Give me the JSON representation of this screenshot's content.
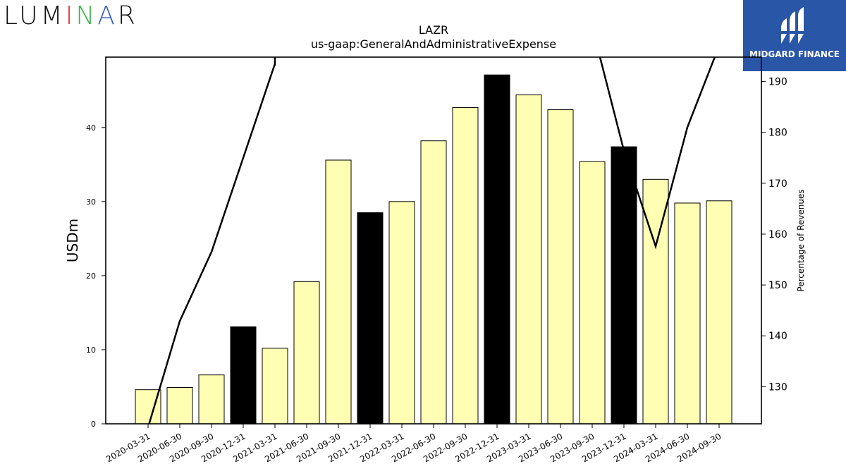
{
  "header": {
    "logo_text_parts": [
      "LUM",
      "I",
      "N",
      "A",
      "R"
    ],
    "badge_label": "MIDGARD FINANCE"
  },
  "chart_data": {
    "type": "bar",
    "title": "LAZR",
    "subtitle": "us-gaap:GeneralAndAdministrativeExpense",
    "ylabel": "USDm",
    "y2label": "Percentage of Revenues",
    "ylim": [
      0,
      49.5
    ],
    "y2lim": [
      122.7,
      194.8
    ],
    "yticks": [
      0,
      10,
      20,
      30,
      40
    ],
    "y2ticks": [
      130,
      140,
      150,
      160,
      170,
      180,
      190
    ],
    "categories": [
      "2020-03-31",
      "2020-06-30",
      "2020-09-30",
      "2020-12-31",
      "2021-03-31",
      "2021-06-30",
      "2021-09-30",
      "2021-12-31",
      "2022-03-31",
      "2022-06-30",
      "2022-09-30",
      "2022-12-31",
      "2023-03-31",
      "2023-06-30",
      "2023-09-30",
      "2023-12-31",
      "2024-03-31",
      "2024-06-30",
      "2024-09-30"
    ],
    "series": [
      {
        "type": "bar",
        "values": [
          4.6,
          4.9,
          6.6,
          13.1,
          10.2,
          19.2,
          35.6,
          28.5,
          30.0,
          38.2,
          42.7,
          47.1,
          44.4,
          42.4,
          35.4,
          37.4,
          33.0,
          29.8,
          30.1
        ],
        "colors": [
          "#ffffb3",
          "#ffffb3",
          "#ffffb3",
          "#000000",
          "#ffffb3",
          "#ffffb3",
          "#ffffb3",
          "#000000",
          "#ffffb3",
          "#ffffb3",
          "#ffffb3",
          "#000000",
          "#ffffb3",
          "#ffffb3",
          "#ffffb3",
          "#000000",
          "#ffffb3",
          "#ffffb3",
          "#ffffb3"
        ]
      },
      {
        "type": "line",
        "axis": "right",
        "values": [
          122.0,
          142.9,
          156.5,
          null,
          193.5,
          null,
          null,
          null,
          null,
          null,
          null,
          null,
          null,
          null,
          null,
          176.4,
          157.6,
          181.0,
          197.0
        ],
        "color": "#000000"
      }
    ]
  }
}
